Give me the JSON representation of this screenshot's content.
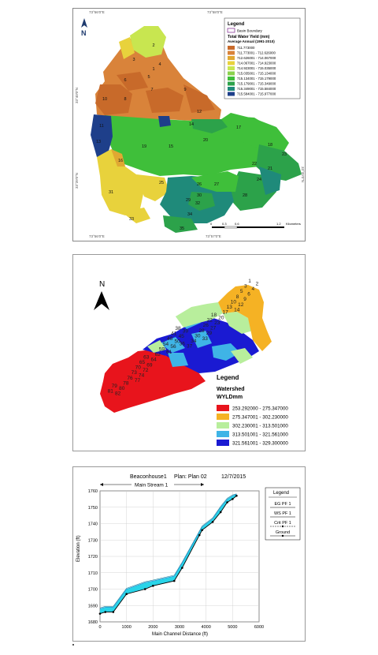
{
  "map1": {
    "coords_top": [
      "73°56'0\"E",
      "73°58'0\"E"
    ],
    "coords_bottom": [
      "73°56'0\"E",
      "73°57'0\"E"
    ],
    "coords_left": [
      "33°40'0\"N",
      "33°39'0\"N"
    ],
    "coords_right": [
      "33°39'0\"N"
    ],
    "north": "N",
    "legend": {
      "title": "Legend",
      "boundary_label": "Basin Boundary",
      "subtitle": "Total Water Yield (mm)",
      "subtitle2": "Average Annual (1991-2010)",
      "classes": [
        {
          "label": "711.773000",
          "color": "#c86a2a"
        },
        {
          "label": "711.773001 - 712.626000",
          "color": "#d9833a"
        },
        {
          "label": "712.626001 - 714.067000",
          "color": "#e0a832"
        },
        {
          "label": "714.067001 - 714.923000",
          "color": "#e8d23c"
        },
        {
          "label": "714.923001 - 715.035000",
          "color": "#c8e650"
        },
        {
          "label": "715.035001 - 715.134000",
          "color": "#8ad24c"
        },
        {
          "label": "715.134001 - 715.179000",
          "color": "#3fbf3a"
        },
        {
          "label": "715.179001 - 715.349000",
          "color": "#2ca24a"
        },
        {
          "label": "715.349001 - 715.584000",
          "color": "#1f8a7a"
        },
        {
          "label": "715.584001 - 715.977000",
          "color": "#1e3f8a"
        }
      ]
    },
    "scale": {
      "ticks": [
        "0",
        "0.3",
        "0.6",
        "1.2"
      ],
      "unit": "Kilometers"
    },
    "subbasins": [
      {
        "id": "1",
        "color": "#e8d23c"
      },
      {
        "id": "2",
        "color": "#c8e650"
      },
      {
        "id": "3",
        "color": "#d9833a"
      },
      {
        "id": "4",
        "color": "#d9833a"
      },
      {
        "id": "5",
        "color": "#c86a2a"
      },
      {
        "id": "6",
        "color": "#c86a2a"
      },
      {
        "id": "7",
        "color": "#d9833a"
      },
      {
        "id": "8",
        "color": "#c86a2a"
      },
      {
        "id": "9",
        "color": "#d9833a"
      },
      {
        "id": "10",
        "color": "#d9833a"
      },
      {
        "id": "11",
        "color": "#1e3f8a"
      },
      {
        "id": "12",
        "color": "#c86a2a"
      },
      {
        "id": "13",
        "color": "#1e3f8a"
      },
      {
        "id": "14",
        "color": "#1f8a7a"
      },
      {
        "id": "15",
        "color": "#3fbf3a"
      },
      {
        "id": "16",
        "color": "#e0a832"
      },
      {
        "id": "17",
        "color": "#3fbf3a"
      },
      {
        "id": "18",
        "color": "#3fbf3a"
      },
      {
        "id": "19",
        "color": "#3fbf3a"
      },
      {
        "id": "20",
        "color": "#3fbf3a"
      },
      {
        "id": "21",
        "color": "#2ca24a"
      },
      {
        "id": "22",
        "color": "#2ca24a"
      },
      {
        "id": "23",
        "color": "#1f8a7a"
      },
      {
        "id": "24",
        "color": "#2ca24a"
      },
      {
        "id": "25",
        "color": "#e8d23c"
      },
      {
        "id": "26",
        "color": "#3fbf3a"
      },
      {
        "id": "27",
        "color": "#1f8a7a"
      },
      {
        "id": "28",
        "color": "#2ca24a"
      },
      {
        "id": "29",
        "color": "#2ca24a"
      },
      {
        "id": "30",
        "color": "#1f8a7a"
      },
      {
        "id": "31",
        "color": "#e8d23c"
      },
      {
        "id": "32",
        "color": "#1f8a7a"
      },
      {
        "id": "33",
        "color": "#e8d23c"
      },
      {
        "id": "34",
        "color": "#1f8a7a"
      },
      {
        "id": "35",
        "color": "#2ca24a"
      }
    ]
  },
  "map2": {
    "north": "N",
    "legend": {
      "title": "Legend",
      "subtitle": "Watershed",
      "field": "WYLDmm",
      "classes": [
        {
          "label": "253.292000 - 275.347000",
          "color": "#e8141c"
        },
        {
          "label": "275.347001 - 302.230000",
          "color": "#f5b224"
        },
        {
          "label": "302.230001 - 313.501000",
          "color": "#b8ee9c"
        },
        {
          "label": "313.501001 - 321.561000",
          "color": "#3fb4e6"
        },
        {
          "label": "321.561001 - 329.300000",
          "color": "#1a1ad2"
        }
      ]
    },
    "subbasin_labels": [
      "1",
      "2",
      "3",
      "4",
      "5",
      "6",
      "8",
      "9",
      "10",
      "12",
      "13",
      "14",
      "17",
      "18",
      "20",
      "22",
      "23",
      "26",
      "27",
      "28",
      "29",
      "30",
      "33",
      "34",
      "36",
      "37",
      "38",
      "39",
      "41",
      "45",
      "48",
      "50",
      "54",
      "56",
      "59",
      "61",
      "62",
      "63",
      "64",
      "65",
      "69",
      "70",
      "72",
      "73",
      "74",
      "76",
      "77",
      "78",
      "79",
      "80",
      "81",
      "82"
    ]
  },
  "profile": {
    "title": "Beaconhouse1",
    "plan": "Plan: Plan 02",
    "date": "12/7/2015",
    "stream": "Main Stream 1",
    "legend": {
      "title": "Legend",
      "items": [
        "EG PF 1",
        "WS PF 1",
        "Crit PF 1",
        "Ground"
      ]
    },
    "colors": {
      "water": "#29d4e8",
      "ground": "#000000",
      "eg": "#1a8a9a"
    }
  },
  "chart_data": {
    "type": "line",
    "title": "Beaconhouse1",
    "xlabel": "Main Channel Distance (ft)",
    "ylabel": "Elevation (ft)",
    "xlim": [
      0,
      6000
    ],
    "ylim": [
      1680,
      1760
    ],
    "xticks": [
      0,
      1000,
      2000,
      3000,
      4000,
      5000,
      6000
    ],
    "yticks": [
      1680,
      1690,
      1700,
      1710,
      1720,
      1730,
      1740,
      1750,
      1760
    ],
    "series": [
      {
        "name": "Ground",
        "x": [
          0,
          200,
          500,
          1000,
          1700,
          2000,
          2800,
          3100,
          3750,
          3850,
          4250,
          4550,
          4800,
          5000,
          5150
        ],
        "values": [
          1685,
          1686,
          1686,
          1697,
          1700,
          1702,
          1705,
          1713,
          1733,
          1736,
          1741,
          1747,
          1753,
          1755,
          1757
        ]
      },
      {
        "name": "WS PF 1",
        "x": [
          0,
          200,
          500,
          1000,
          1700,
          2000,
          2800,
          3100,
          3750,
          3850,
          4250,
          4550,
          4800,
          5000,
          5150
        ],
        "values": [
          1688,
          1689,
          1689,
          1700,
          1704,
          1705,
          1708,
          1716,
          1735,
          1738,
          1743,
          1750,
          1755,
          1757,
          1758
        ]
      },
      {
        "name": "EG PF 1",
        "x": [
          0,
          200,
          500,
          1000,
          1700,
          2000,
          2800,
          3100,
          3750,
          3850,
          4250,
          4550,
          4800,
          5000,
          5150
        ],
        "values": [
          1688.5,
          1689.5,
          1689.5,
          1700.5,
          1704.5,
          1705.5,
          1708.5,
          1716.5,
          1735.5,
          1738.5,
          1743.5,
          1750.5,
          1755.5,
          1757.5,
          1758.2
        ]
      }
    ]
  }
}
